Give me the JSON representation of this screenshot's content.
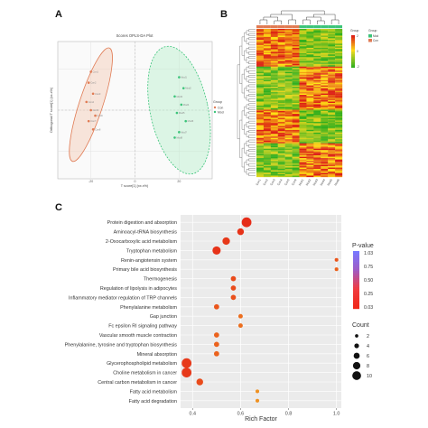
{
  "panels": {
    "a": "A",
    "b": "B",
    "c": "C"
  },
  "colors": {
    "ctrl": "#e07b54",
    "mod": "#3cc47a",
    "grid": "#e6e6e6"
  },
  "chart_data": [
    {
      "type": "scatter",
      "title": "Scores OPLS-DA Plot",
      "xlabel": "T score[1] (xx.x%)",
      "ylabel": "Orthogonal T score[1] (xx.x%)",
      "legend_title": "Group",
      "legend_position": "right",
      "xticks": [
        "-20",
        "0",
        "20"
      ],
      "series": [
        {
          "name": "Con",
          "color": "#e07b54",
          "points": [
            [
              -20,
              14
            ],
            [
              -21,
              10
            ],
            [
              -19,
              6
            ],
            [
              -22,
              3
            ],
            [
              -20,
              0
            ],
            [
              -18,
              -2
            ],
            [
              -21,
              -4
            ],
            [
              -19,
              -7
            ]
          ]
        },
        {
          "name": "Mod",
          "color": "#3cc47a",
          "points": [
            [
              20,
              12
            ],
            [
              22,
              8
            ],
            [
              18,
              5
            ],
            [
              21,
              2
            ],
            [
              19,
              -1
            ],
            [
              23,
              -4
            ],
            [
              20,
              -8
            ],
            [
              18,
              -10
            ]
          ]
        }
      ]
    },
    {
      "type": "heatmap",
      "color_key_title": "Group",
      "legend_title": "Group",
      "color_key_ticks": [
        "2",
        "0",
        "-2"
      ],
      "groups": [
        {
          "name": "Mod",
          "color": "#3cc47a"
        },
        {
          "name": "Con",
          "color": "#e07b54"
        }
      ],
      "col_groups": [
        "Con",
        "Con",
        "Con",
        "Con",
        "Con",
        "Con",
        "Mod",
        "Mod",
        "Mod",
        "Mod",
        "Mod",
        "Mod"
      ]
    },
    {
      "type": "scatter",
      "xlabel": "Rich Factor",
      "xlim": [
        0.35,
        1.02
      ],
      "xticks": [
        0.4,
        0.6,
        0.8,
        1.0
      ],
      "tick_labels": [
        "0.4",
        "0.6",
        "0.8",
        "1.0"
      ],
      "pvalue_legend": {
        "title": "P-value",
        "ticks": [
          "1.03",
          "0.75",
          "0.50",
          "0.25",
          "0.03"
        ]
      },
      "count_legend": {
        "title": "Count",
        "labels": [
          "2",
          "4",
          "6",
          "8",
          "10"
        ]
      },
      "pathways": [
        {
          "name": "Protein digestion and absorption",
          "rich": 0.625,
          "count": 10,
          "p": 0.03
        },
        {
          "name": "Aminoacyl-tRNA biosynthesis",
          "rich": 0.6,
          "count": 6,
          "p": 0.04
        },
        {
          "name": "2-Oxocarboxylic acid metabolism",
          "rich": 0.54,
          "count": 7,
          "p": 0.05
        },
        {
          "name": "Tryptophan metabolism",
          "rich": 0.5,
          "count": 8,
          "p": 0.04
        },
        {
          "name": "Renin-angiotensin system",
          "rich": 1.0,
          "count": 2,
          "p": 0.1
        },
        {
          "name": "Primary bile acid biosynthesis",
          "rich": 1.0,
          "count": 2,
          "p": 0.12
        },
        {
          "name": "Thermogenesis",
          "rich": 0.57,
          "count": 4,
          "p": 0.08
        },
        {
          "name": "Regulation of lipolysis in adipocytes",
          "rich": 0.57,
          "count": 4,
          "p": 0.08
        },
        {
          "name": "Inflammatory mediator regulation of TRP channels",
          "rich": 0.57,
          "count": 4,
          "p": 0.09
        },
        {
          "name": "Phenylalanine metabolism",
          "rich": 0.5,
          "count": 4,
          "p": 0.1
        },
        {
          "name": "Gap junction",
          "rich": 0.6,
          "count": 3,
          "p": 0.14
        },
        {
          "name": "Fc epsilon RI signaling pathway",
          "rich": 0.6,
          "count": 3,
          "p": 0.14
        },
        {
          "name": "Vascular smooth muscle contraction",
          "rich": 0.5,
          "count": 4,
          "p": 0.12
        },
        {
          "name": "Phenylalanine, tyrosine and tryptophan biosynthesis",
          "rich": 0.5,
          "count": 4,
          "p": 0.12
        },
        {
          "name": "Mineral absorption",
          "rich": 0.5,
          "count": 4,
          "p": 0.12
        },
        {
          "name": "Glycerophospholipid metabolism",
          "rich": 0.375,
          "count": 10,
          "p": 0.05
        },
        {
          "name": "Choline metabolism in cancer",
          "rich": 0.375,
          "count": 10,
          "p": 0.05
        },
        {
          "name": "Central carbon metabolism in cancer",
          "rich": 0.43,
          "count": 6,
          "p": 0.08
        },
        {
          "name": "Fatty acid metabolism",
          "rich": 0.67,
          "count": 2,
          "p": 0.2
        },
        {
          "name": "Fatty acid degradation",
          "rich": 0.67,
          "count": 2,
          "p": 0.2
        }
      ]
    }
  ]
}
